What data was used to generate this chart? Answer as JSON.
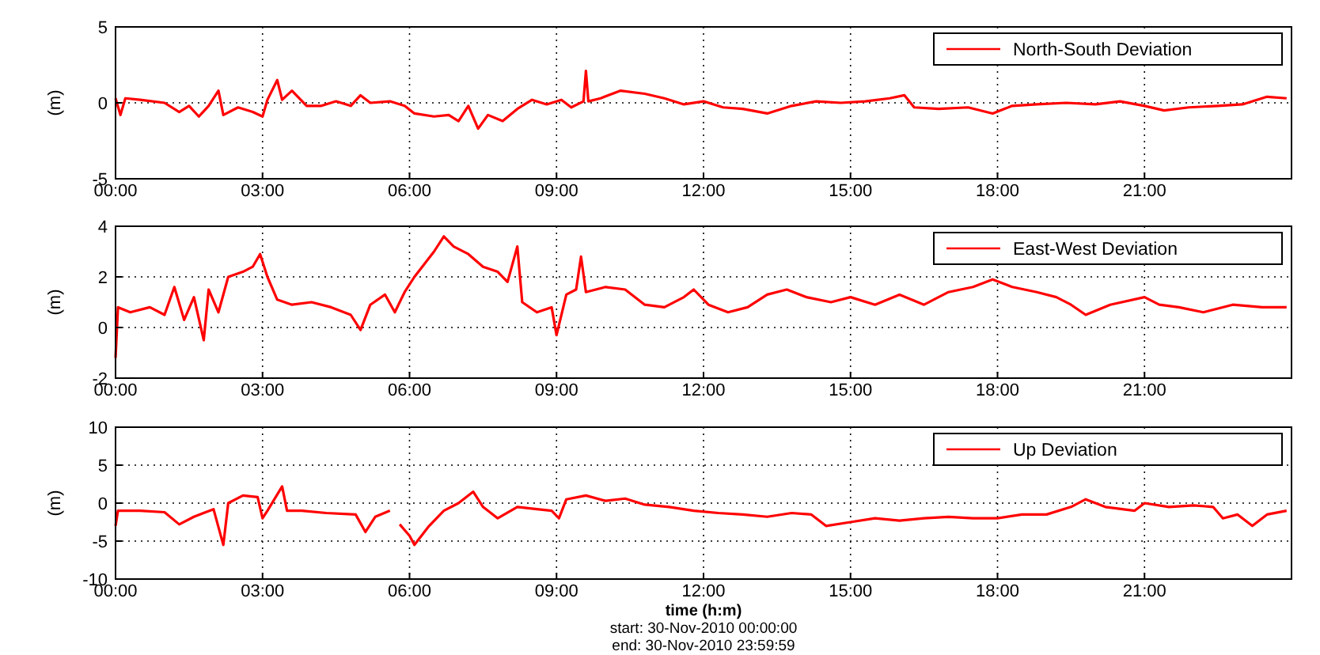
{
  "chart_data": [
    {
      "type": "line",
      "ylabel": "(m)",
      "xlim": [
        0,
        24
      ],
      "xticks": [
        {
          "value": 0,
          "label": "00:00"
        },
        {
          "value": 3,
          "label": "03:00"
        },
        {
          "value": 6,
          "label": "06:00"
        },
        {
          "value": 9,
          "label": "09:00"
        },
        {
          "value": 12,
          "label": "12:00"
        },
        {
          "value": 15,
          "label": "15:00"
        },
        {
          "value": 18,
          "label": "18:00"
        },
        {
          "value": 21,
          "label": "21:00"
        }
      ],
      "ylim": [
        -5,
        5
      ],
      "yticks": [
        -5,
        0,
        5
      ],
      "grid": true,
      "legend": "top right",
      "x": [
        0,
        0.1,
        0.2,
        0.5,
        1,
        1.3,
        1.5,
        1.7,
        1.9,
        2.1,
        2.2,
        2.5,
        2.8,
        3.0,
        3.1,
        3.3,
        3.4,
        3.6,
        3.9,
        4.2,
        4.5,
        4.8,
        5.0,
        5.2,
        5.6,
        5.9,
        6.1,
        6.5,
        6.8,
        7.0,
        7.2,
        7.4,
        7.6,
        7.9,
        8.2,
        8.5,
        8.8,
        9.1,
        9.3,
        9.55,
        9.6,
        9.65,
        9.9,
        10.3,
        10.8,
        11.2,
        11.6,
        12.0,
        12.4,
        12.8,
        13.3,
        13.8,
        14.3,
        14.8,
        15.3,
        15.8,
        16.1,
        16.3,
        16.8,
        17.4,
        17.9,
        18.3,
        18.8,
        19.4,
        20.0,
        20.5,
        21.0,
        21.4,
        21.9,
        22.5,
        23.0,
        23.5,
        23.9
      ],
      "series": [
        {
          "name": "North-South Deviation",
          "color": "#ff0000",
          "values": [
            0.3,
            -0.8,
            0.3,
            0.2,
            0,
            -0.6,
            -0.2,
            -0.9,
            -0.2,
            0.8,
            -0.8,
            -0.3,
            -0.6,
            -0.9,
            0.2,
            1.5,
            0.2,
            0.8,
            -0.2,
            -0.2,
            0.1,
            -0.2,
            0.5,
            0,
            0.1,
            -0.2,
            -0.7,
            -0.9,
            -0.8,
            -1.2,
            -0.2,
            -1.7,
            -0.8,
            -1.2,
            -0.4,
            0.2,
            -0.1,
            0.2,
            -0.3,
            0.1,
            2.1,
            0.1,
            0.3,
            0.8,
            0.6,
            0.3,
            -0.1,
            0.1,
            -0.3,
            -0.4,
            -0.7,
            -0.2,
            0.1,
            0,
            0.1,
            0.3,
            0.5,
            -0.3,
            -0.4,
            -0.3,
            -0.7,
            -0.2,
            -0.1,
            0,
            -0.1,
            0.1,
            -0.2,
            -0.5,
            -0.3,
            -0.2,
            -0.1,
            0.4,
            0.3
          ]
        }
      ]
    },
    {
      "type": "line",
      "ylabel": "(m)",
      "xlim": [
        0,
        24
      ],
      "xticks": [
        {
          "value": 0,
          "label": "00:00"
        },
        {
          "value": 3,
          "label": "03:00"
        },
        {
          "value": 6,
          "label": "06:00"
        },
        {
          "value": 9,
          "label": "09:00"
        },
        {
          "value": 12,
          "label": "12:00"
        },
        {
          "value": 15,
          "label": "15:00"
        },
        {
          "value": 18,
          "label": "18:00"
        },
        {
          "value": 21,
          "label": "21:00"
        }
      ],
      "ylim": [
        -2,
        4
      ],
      "yticks": [
        -2,
        0,
        2,
        4
      ],
      "grid": true,
      "legend": "top right",
      "x": [
        0,
        0.05,
        0.3,
        0.7,
        1.0,
        1.2,
        1.4,
        1.6,
        1.8,
        1.9,
        2.1,
        2.3,
        2.6,
        2.8,
        2.95,
        3.1,
        3.3,
        3.6,
        4.0,
        4.4,
        4.8,
        5.0,
        5.2,
        5.5,
        5.7,
        5.9,
        6.1,
        6.3,
        6.5,
        6.7,
        6.9,
        7.2,
        7.5,
        7.8,
        8.0,
        8.2,
        8.3,
        8.6,
        8.9,
        9.0,
        9.2,
        9.4,
        9.5,
        9.6,
        10.0,
        10.4,
        10.8,
        11.2,
        11.6,
        11.8,
        12.1,
        12.5,
        12.9,
        13.3,
        13.7,
        14.1,
        14.6,
        15.0,
        15.5,
        16.0,
        16.5,
        17.0,
        17.5,
        17.9,
        18.3,
        18.8,
        19.2,
        19.5,
        19.8,
        20.3,
        21.0,
        21.3,
        21.7,
        22.2,
        22.8,
        23.4,
        23.9
      ],
      "series": [
        {
          "name": "East-West Deviation",
          "color": "#ff0000",
          "values": [
            -1.2,
            0.8,
            0.6,
            0.8,
            0.5,
            1.6,
            0.3,
            1.2,
            -0.5,
            1.5,
            0.6,
            2.0,
            2.2,
            2.4,
            2.9,
            2.0,
            1.1,
            0.9,
            1.0,
            0.8,
            0.5,
            -0.1,
            0.9,
            1.3,
            0.6,
            1.4,
            2.0,
            2.5,
            3.0,
            3.6,
            3.2,
            2.9,
            2.4,
            2.2,
            1.8,
            3.2,
            1.0,
            0.6,
            0.8,
            -0.3,
            1.3,
            1.5,
            2.8,
            1.4,
            1.6,
            1.5,
            0.9,
            0.8,
            1.2,
            1.5,
            0.9,
            0.6,
            0.8,
            1.3,
            1.5,
            1.2,
            1.0,
            1.2,
            0.9,
            1.3,
            0.9,
            1.4,
            1.6,
            1.9,
            1.6,
            1.4,
            1.2,
            0.9,
            0.5,
            0.9,
            1.2,
            0.9,
            0.8,
            0.6,
            0.9,
            0.8,
            0.8
          ]
        }
      ]
    },
    {
      "type": "line",
      "ylabel": "(m)",
      "xlabel": "time (h:m)",
      "annotations": [
        "start: 30-Nov-2010 00:00:00",
        "end: 30-Nov-2010 23:59:59"
      ],
      "xlim": [
        0,
        24
      ],
      "xticks": [
        {
          "value": 0,
          "label": "00:00"
        },
        {
          "value": 3,
          "label": "03:00"
        },
        {
          "value": 6,
          "label": "06:00"
        },
        {
          "value": 9,
          "label": "09:00"
        },
        {
          "value": 12,
          "label": "12:00"
        },
        {
          "value": 15,
          "label": "15:00"
        },
        {
          "value": 18,
          "label": "18:00"
        },
        {
          "value": 21,
          "label": "21:00"
        }
      ],
      "ylim": [
        -10,
        10
      ],
      "yticks": [
        -10,
        -5,
        0,
        5,
        10
      ],
      "grid": true,
      "legend": "top right",
      "x": [
        0,
        0.05,
        0.5,
        1.0,
        1.3,
        1.6,
        2.0,
        2.2,
        2.3,
        2.6,
        2.9,
        3.0,
        3.1,
        3.4,
        3.5,
        3.8,
        4.3,
        4.9,
        5.1,
        5.3,
        5.6,
        5.7,
        5.8,
        6.0,
        6.1,
        6.4,
        6.7,
        7.0,
        7.3,
        7.5,
        7.8,
        8.2,
        8.6,
        8.9,
        9.05,
        9.2,
        9.6,
        10.0,
        10.4,
        10.8,
        11.3,
        11.8,
        12.3,
        12.8,
        13.3,
        13.8,
        14.2,
        14.5,
        15.0,
        15.5,
        16.0,
        16.5,
        17.0,
        17.5,
        18.0,
        18.5,
        19.0,
        19.5,
        19.8,
        20.2,
        20.8,
        21.0,
        21.5,
        22.0,
        22.4,
        22.6,
        22.9,
        23.2,
        23.5,
        23.9
      ],
      "series": [
        {
          "name": "Up Deviation",
          "color": "#ff0000",
          "values": [
            -3,
            -1,
            -1,
            -1.2,
            -2.8,
            -1.8,
            -0.8,
            -5.5,
            0,
            1,
            0.8,
            -2,
            -1,
            2.2,
            -1,
            -1,
            -1.3,
            -1.5,
            -3.8,
            -1.8,
            -1,
            null,
            -2.8,
            -4.3,
            -5.5,
            -3,
            -1,
            0,
            1.5,
            -0.5,
            -2,
            -0.5,
            -0.8,
            -1,
            -2,
            0.5,
            1,
            0.3,
            0.6,
            -0.2,
            -0.5,
            -1,
            -1.3,
            -1.5,
            -1.8,
            -1.3,
            -1.5,
            -3,
            -2.5,
            -2,
            -2.3,
            -2,
            -1.8,
            -2,
            -2,
            -1.5,
            -1.5,
            -0.5,
            0.5,
            -0.5,
            -1,
            0,
            -0.5,
            -0.3,
            -0.5,
            -2,
            -1.5,
            -3,
            -1.5,
            -1
          ]
        }
      ]
    }
  ]
}
